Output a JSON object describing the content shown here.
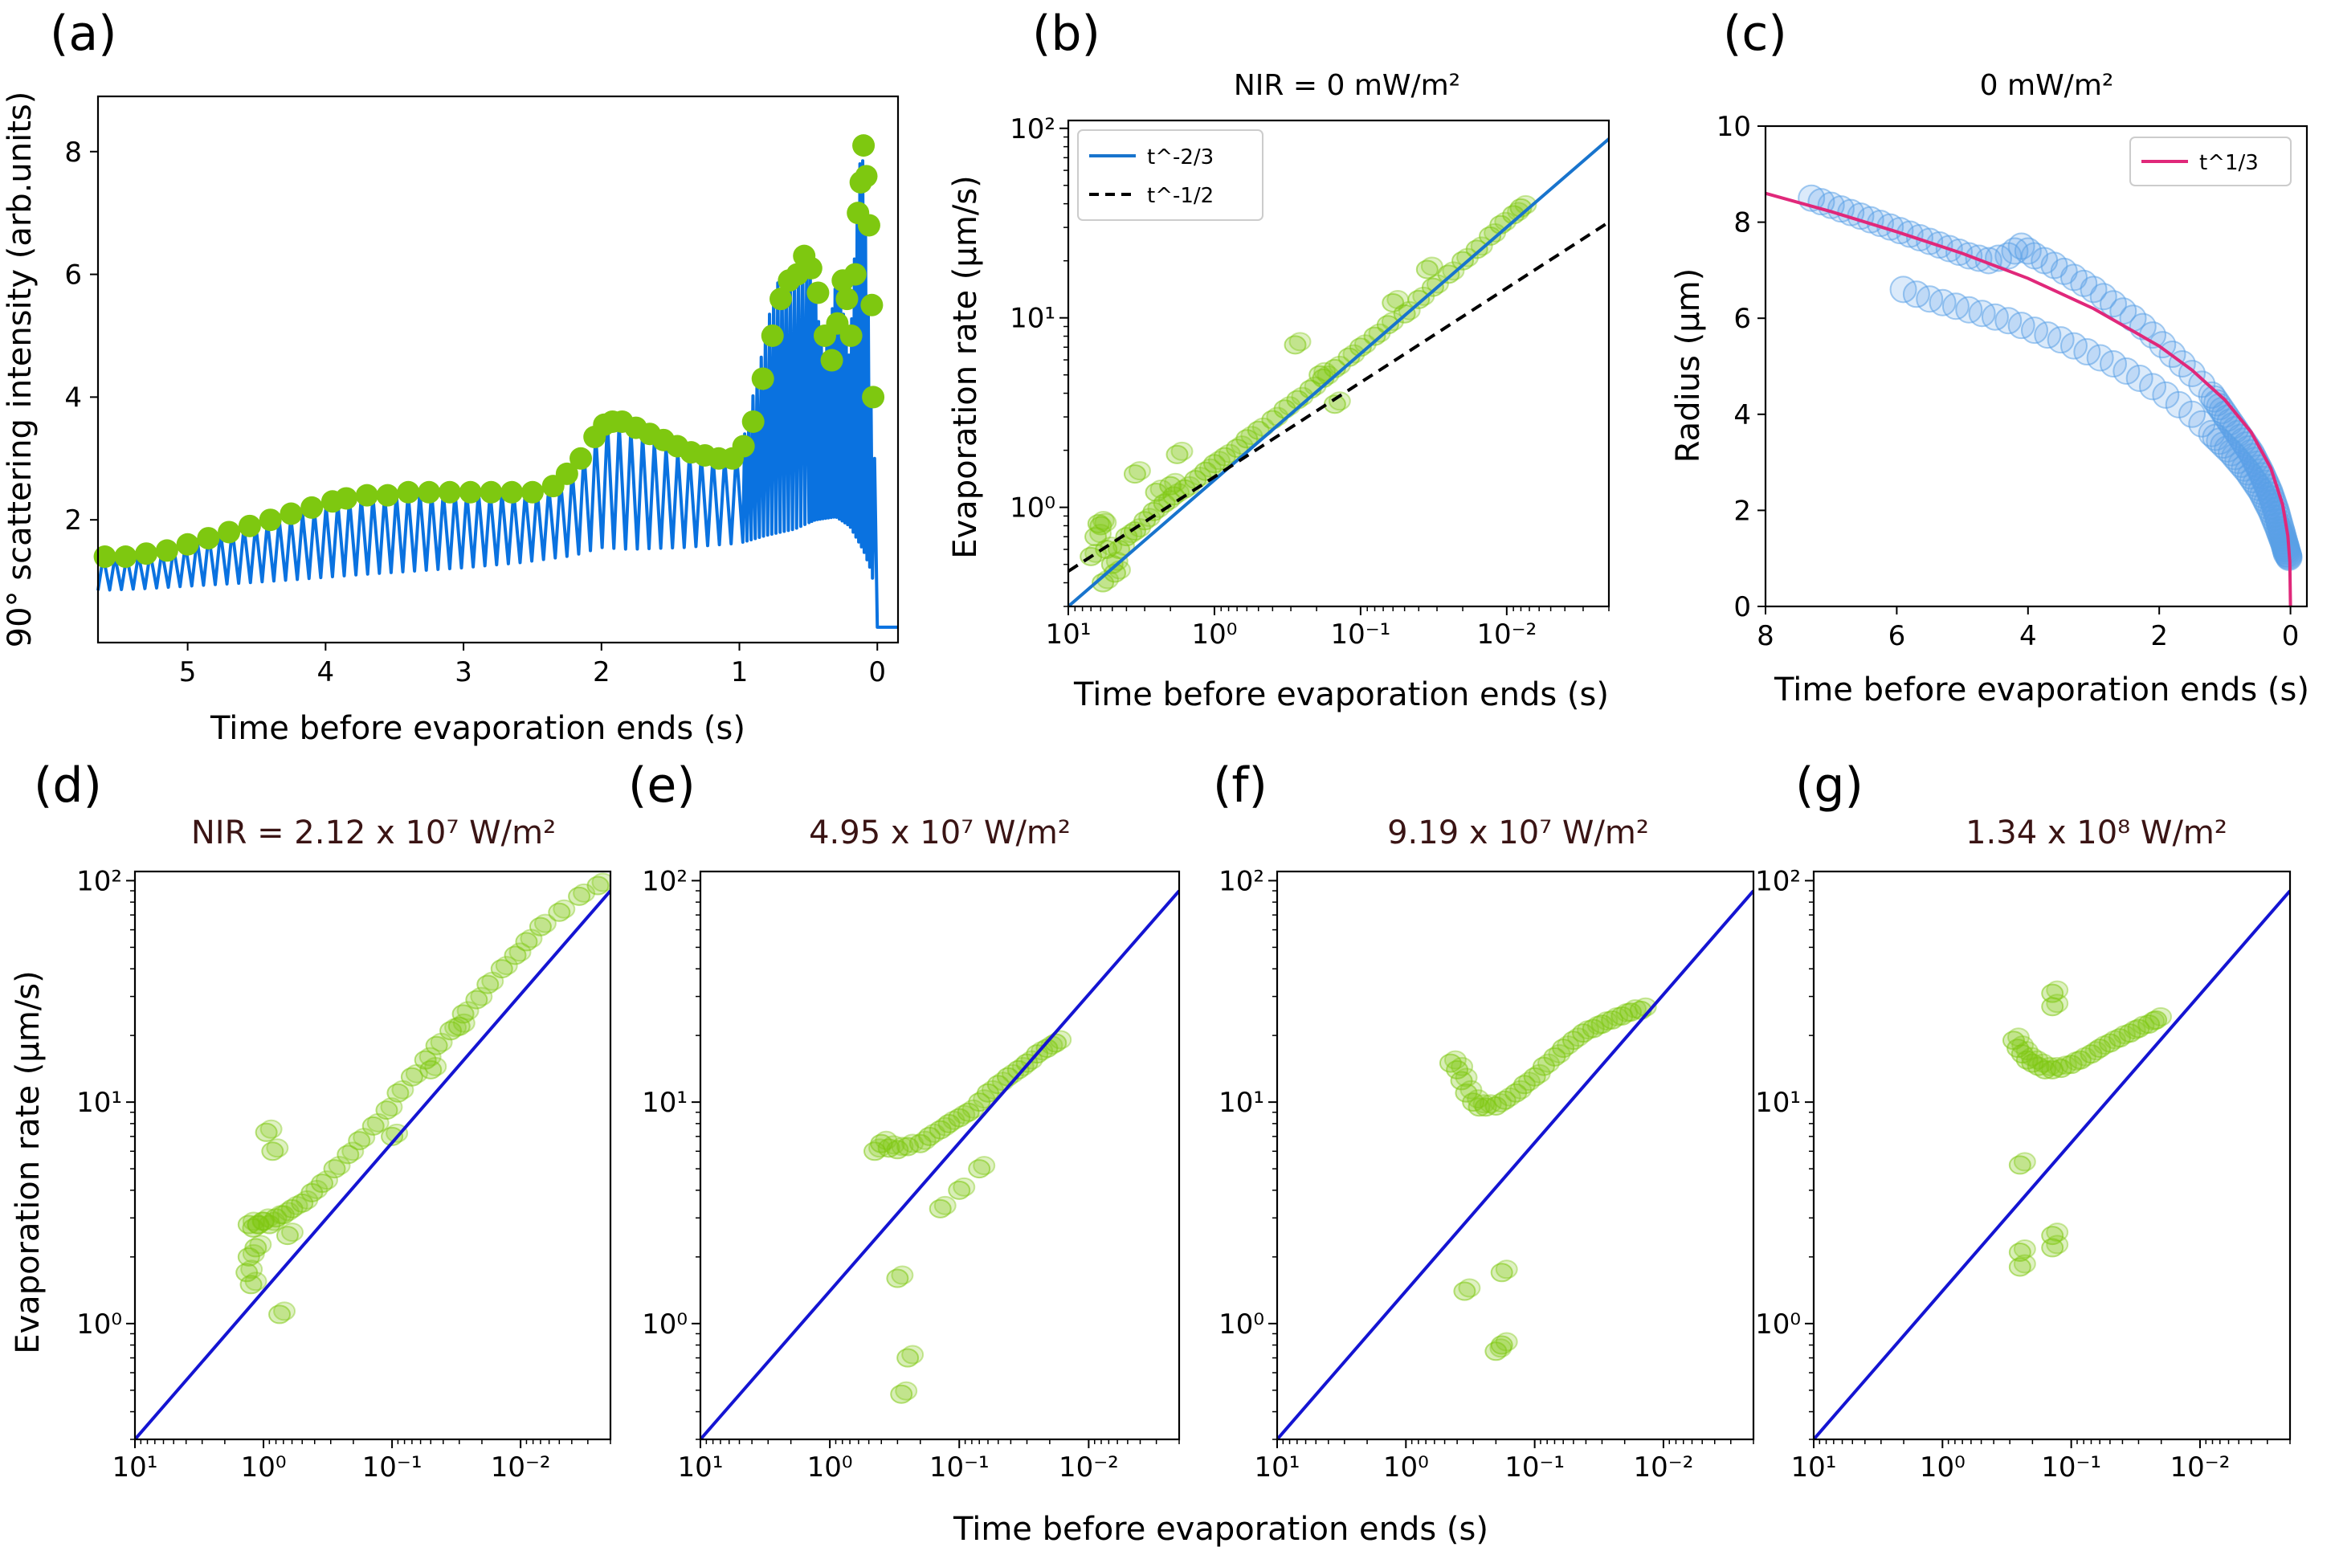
{
  "figure": {
    "panels": [
      {
        "id": "a",
        "letter": "(a)",
        "title": "",
        "xlabel": "Time before evaporation ends (s)",
        "ylabel": "90° scattering intensity (arb.units)"
      },
      {
        "id": "b",
        "letter": "(b)",
        "title": "NIR = 0 mW/m²",
        "xlabel": "Time before evaporation ends (s)",
        "ylabel": "Evaporation rate (μm/s)"
      },
      {
        "id": "c",
        "letter": "(c)",
        "title": "0 mW/m²",
        "xlabel": "Time before evaporation ends (s)",
        "ylabel": "Radius (μm)"
      },
      {
        "id": "d",
        "letter": "(d)",
        "title": "NIR = 2.12 x 10⁷ W/m²",
        "xlabel": "",
        "ylabel": "Evaporation rate (μm/s)"
      },
      {
        "id": "e",
        "letter": "(e)",
        "title": "4.95 x 10⁷ W/m²",
        "xlabel": "",
        "ylabel": ""
      },
      {
        "id": "f",
        "letter": "(f)",
        "title": "9.19 x 10⁷ W/m²",
        "xlabel": "",
        "ylabel": ""
      },
      {
        "id": "g",
        "letter": "(g)",
        "title": "1.34 x 10⁸ W/m²",
        "xlabel": "",
        "ylabel": ""
      }
    ],
    "shared_xlabel_bottom": "Time before evaporation ends (s)",
    "colors": {
      "blue_line": "#0a72e0",
      "green_marker": "#7ec810",
      "fit_blue": "#1874cd",
      "dash": "#000000",
      "pink": "#e0287a",
      "navy_line": "#1414d2",
      "marker_blue": "#5aa0e6"
    }
  },
  "chart_data": [
    {
      "panel": "a",
      "type": "line",
      "xlabel": "Time before evaporation ends (s)",
      "ylabel": "90° scattering intensity (arb.units)",
      "xlim": [
        5.65,
        -0.15
      ],
      "ylim": [
        0.0,
        8.9
      ],
      "xticks": [
        5,
        4,
        3,
        2,
        1,
        0
      ],
      "yticks": [
        2,
        4,
        6,
        8
      ],
      "xtick_labels": [
        "5",
        "4",
        "3",
        "2",
        "1",
        "0"
      ],
      "ytick_labels": [
        "2",
        "4",
        "6",
        "8"
      ],
      "envelope_max": {
        "t": [
          5.6,
          5.5,
          5.35,
          5.2,
          5.05,
          4.9,
          4.8,
          4.6,
          4.4,
          4.2,
          4.0,
          3.85,
          3.6,
          3.4,
          3.2,
          3.0,
          2.8,
          2.6,
          2.4,
          2.25,
          2.1,
          2.0,
          1.95,
          1.85,
          1.75,
          1.6,
          1.45,
          1.3,
          1.15,
          1.0,
          0.95,
          0.9,
          0.85,
          0.8,
          0.75,
          0.7,
          0.65,
          0.6,
          0.55,
          0.5,
          0.45,
          0.4,
          0.35,
          0.3,
          0.27,
          0.24,
          0.21,
          0.19,
          0.17,
          0.15,
          0.13,
          0.11,
          0.09,
          0.07,
          0.06,
          0.05,
          0.04
        ],
        "y": [
          1.4,
          1.4,
          1.45,
          1.5,
          1.6,
          1.75,
          1.8,
          1.9,
          2.0,
          2.1,
          2.25,
          2.35,
          2.4,
          2.45,
          2.45,
          2.45,
          2.45,
          2.45,
          2.55,
          2.8,
          3.35,
          3.6,
          3.6,
          3.5,
          3.4,
          3.2,
          3.1,
          3.05,
          3.0,
          3.2,
          3.6,
          4.2,
          4.7,
          5.3,
          5.8,
          6.0,
          5.95,
          6.1,
          6.4,
          6.0,
          5.5,
          4.6,
          5.2,
          6.0,
          5.6,
          5.1,
          4.6,
          5.5,
          6.5,
          7.2,
          8.0,
          7.8,
          6.5,
          5.2,
          4.5,
          3.5,
          2.5
        ]
      },
      "envelope_min": {
        "t": [
          5.65,
          5.3,
          5.0,
          4.6,
          4.2,
          3.8,
          3.4,
          3.0,
          2.6,
          2.2,
          2.0,
          1.8,
          1.4,
          1.0,
          0.8,
          0.6,
          0.45,
          0.3,
          0.2,
          0.1,
          0.05,
          0.02,
          0.0,
          -0.15
        ],
        "y": [
          0.85,
          0.88,
          0.92,
          0.97,
          1.03,
          1.1,
          1.16,
          1.22,
          1.3,
          1.42,
          1.55,
          1.52,
          1.55,
          1.62,
          1.75,
          1.85,
          2.0,
          2.05,
          1.9,
          1.5,
          1.2,
          0.9,
          0.25,
          0.25
        ]
      },
      "markers": {
        "t": [
          5.6,
          5.45,
          5.3,
          5.15,
          5.0,
          4.85,
          4.7,
          4.55,
          4.4,
          4.25,
          4.1,
          3.95,
          3.85,
          3.7,
          3.55,
          3.4,
          3.25,
          3.1,
          2.95,
          2.8,
          2.65,
          2.5,
          2.35,
          2.25,
          2.15,
          2.05,
          1.98,
          1.92,
          1.85,
          1.75,
          1.65,
          1.55,
          1.45,
          1.35,
          1.25,
          1.15,
          1.05,
          0.97,
          0.9,
          0.83,
          0.76,
          0.7,
          0.64,
          0.58,
          0.53,
          0.48,
          0.43,
          0.38,
          0.33,
          0.29,
          0.25,
          0.22,
          0.19,
          0.16,
          0.14,
          0.12,
          0.1,
          0.08,
          0.06,
          0.04,
          0.03
        ],
        "y": [
          1.4,
          1.4,
          1.45,
          1.5,
          1.6,
          1.7,
          1.8,
          1.9,
          2.0,
          2.1,
          2.2,
          2.3,
          2.35,
          2.4,
          2.4,
          2.45,
          2.45,
          2.45,
          2.45,
          2.45,
          2.45,
          2.45,
          2.55,
          2.75,
          3.0,
          3.35,
          3.55,
          3.6,
          3.6,
          3.5,
          3.4,
          3.3,
          3.2,
          3.1,
          3.05,
          3.0,
          3.0,
          3.2,
          3.6,
          4.3,
          5.0,
          5.6,
          5.9,
          6.0,
          6.3,
          6.1,
          5.7,
          5.0,
          4.6,
          5.2,
          5.9,
          5.6,
          5.0,
          6.0,
          7.0,
          7.5,
          8.1,
          7.6,
          6.8,
          5.5,
          4.0
        ]
      }
    },
    {
      "panel": "b",
      "type": "scatter",
      "title": "NIR = 0 mW/m²",
      "xscale": "log-reversed",
      "yscale": "log",
      "xlim": [
        10,
        0.002
      ],
      "ylim": [
        0.3,
        110
      ],
      "xtick_labels": [
        "10¹",
        "10⁰",
        "10⁻¹",
        "10⁻²"
      ],
      "ytick_labels": [
        "10⁰",
        "10¹",
        "10²"
      ],
      "legend": [
        "t^-2/3",
        "t^-1/2"
      ],
      "legend_position": "top-left",
      "fit_lines": [
        {
          "name": "t^-2/3",
          "style": "solid",
          "x": [
            10,
            0.002
          ],
          "y": [
            0.3,
            88
          ]
        },
        {
          "name": "t^-1/2",
          "style": "dashed",
          "x": [
            10,
            0.002
          ],
          "y": [
            0.46,
            32
          ]
        }
      ],
      "points": {
        "x": [
          7.0,
          6.5,
          6.0,
          5.5,
          5.0,
          4.5,
          4.0,
          3.5,
          3.0,
          2.6,
          2.2,
          1.9,
          1.6,
          1.35,
          1.15,
          1.0,
          0.85,
          0.7,
          0.6,
          0.5,
          0.4,
          0.33,
          0.27,
          0.22,
          0.18,
          0.15,
          0.12,
          0.1,
          0.08,
          0.065,
          0.05,
          0.04,
          0.032,
          0.025,
          0.02,
          0.016,
          0.013,
          0.011,
          0.009,
          0.008,
          3.5,
          2.5,
          0.28,
          0.19,
          0.15,
          0.035,
          0.06,
          6.2,
          5.8,
          4.8,
          1.8,
          2.0
        ],
        "y": [
          0.55,
          0.7,
          0.8,
          0.6,
          0.5,
          0.6,
          0.7,
          0.75,
          0.85,
          0.95,
          1.05,
          1.15,
          1.25,
          1.4,
          1.55,
          1.7,
          1.85,
          2.05,
          2.3,
          2.55,
          2.9,
          3.3,
          3.7,
          4.2,
          4.8,
          5.4,
          6.2,
          7.0,
          8.0,
          9.2,
          10.5,
          12.5,
          14.5,
          17,
          20,
          23,
          27,
          31,
          35,
          38,
          1.5,
          1.2,
          7.2,
          5.0,
          3.5,
          18,
          12,
          0.82,
          0.4,
          0.45,
          1.9,
          1.3
        ]
      }
    },
    {
      "panel": "c",
      "type": "scatter",
      "title": "0 mW/m²",
      "xlim": [
        8,
        -0.25
      ],
      "ylim": [
        0,
        10
      ],
      "xtick_labels": [
        "8",
        "6",
        "4",
        "2",
        "0"
      ],
      "ytick_labels": [
        "0",
        "2",
        "4",
        "6",
        "8",
        "10"
      ],
      "legend": [
        "t^1/3"
      ],
      "legend_position": "top-right",
      "fit_line": {
        "name": "t^1/3",
        "t": [
          8,
          7,
          6,
          5,
          4,
          3,
          2,
          1.5,
          1,
          0.6,
          0.3,
          0.12,
          0.04,
          0.01,
          0.0
        ],
        "y": [
          8.6,
          8.22,
          7.8,
          7.35,
          6.83,
          6.2,
          5.42,
          4.92,
          4.3,
          3.63,
          2.88,
          2.12,
          1.47,
          0.93,
          0.0
        ]
      },
      "series": [
        {
          "name": "upper",
          "t": [
            7.3,
            7.0,
            6.7,
            6.4,
            6.1,
            5.8,
            5.5,
            5.2,
            4.9,
            4.6,
            4.3,
            4.1,
            3.9,
            3.6,
            3.3,
            3.0,
            2.7,
            2.4,
            2.1,
            1.8,
            1.5,
            1.2,
            1.0,
            0.8,
            0.6,
            0.45,
            0.32,
            0.22,
            0.14,
            0.08,
            0.04,
            0.02
          ],
          "y": [
            8.5,
            8.35,
            8.2,
            8.05,
            7.9,
            7.75,
            7.6,
            7.45,
            7.3,
            7.2,
            7.3,
            7.5,
            7.3,
            7.1,
            6.85,
            6.6,
            6.3,
            6.0,
            5.65,
            5.25,
            4.85,
            4.4,
            4.0,
            3.6,
            3.2,
            2.8,
            2.4,
            2.0,
            1.6,
            1.3,
            1.1,
            1.0
          ]
        },
        {
          "name": "lower",
          "t": [
            5.9,
            5.5,
            5.1,
            4.7,
            4.3,
            3.9,
            3.5,
            3.1,
            2.7,
            2.3,
            1.9,
            1.5,
            1.2,
            0.9,
            0.65,
            0.45,
            0.3,
            0.18,
            0.1,
            0.05
          ],
          "y": [
            6.6,
            6.4,
            6.25,
            6.1,
            5.95,
            5.75,
            5.55,
            5.3,
            5.05,
            4.75,
            4.4,
            4.0,
            3.6,
            3.2,
            2.8,
            2.4,
            2.0,
            1.6,
            1.3,
            1.05
          ]
        }
      ]
    },
    {
      "panel": "d",
      "type": "scatter",
      "title": "NIR = 2.12 x 10⁷ W/m²",
      "xscale": "log-reversed",
      "yscale": "log",
      "xlim": [
        10,
        0.002
      ],
      "ylim": [
        0.3,
        110
      ],
      "reference_line": {
        "x": [
          10,
          0.002
        ],
        "y": [
          0.3,
          90
        ]
      },
      "points": {
        "x": [
          1.3,
          1.2,
          1.1,
          1.0,
          0.9,
          0.8,
          0.7,
          0.6,
          0.5,
          0.42,
          0.35,
          0.28,
          0.22,
          0.18,
          0.14,
          0.11,
          0.09,
          0.07,
          0.055,
          0.045,
          0.035,
          0.028,
          0.022,
          0.018,
          0.014,
          0.011,
          0.009,
          0.007,
          0.005,
          0.0035,
          0.0025,
          1.35,
          1.25,
          1.15,
          0.95,
          0.85,
          1.3,
          0.75,
          0.65,
          0.1,
          0.05,
          0.03
        ],
        "y": [
          2.8,
          2.7,
          2.8,
          2.9,
          2.8,
          3.0,
          3.1,
          3.3,
          3.5,
          3.9,
          4.3,
          5.0,
          5.8,
          6.7,
          7.8,
          9.2,
          11,
          13,
          15.5,
          18,
          21,
          25,
          29,
          34,
          40,
          46,
          53,
          62,
          72,
          85,
          95,
          1.7,
          1.5,
          2.2,
          7.3,
          6.0,
          2.0,
          1.1,
          2.5,
          7.0,
          14,
          22
        ]
      }
    },
    {
      "panel": "e",
      "type": "scatter",
      "title": "4.95 x 10⁷ W/m²",
      "xscale": "log-reversed",
      "yscale": "log",
      "xlim": [
        10,
        0.002
      ],
      "ylim": [
        0.3,
        110
      ],
      "reference_line": {
        "x": [
          10,
          0.002
        ],
        "y": [
          0.3,
          90
        ]
      },
      "points": {
        "x": [
          0.45,
          0.4,
          0.35,
          0.3,
          0.25,
          0.2,
          0.17,
          0.14,
          0.12,
          0.1,
          0.085,
          0.07,
          0.06,
          0.05,
          0.042,
          0.035,
          0.03,
          0.025,
          0.021,
          0.018,
          0.3,
          0.25,
          0.28,
          0.1,
          0.14,
          0.07
        ],
        "y": [
          6.0,
          6.5,
          6.2,
          6.1,
          6.3,
          6.5,
          7.0,
          7.5,
          8.0,
          8.5,
          9.0,
          10,
          11,
          12,
          13,
          14,
          15,
          16.5,
          17.5,
          18.5,
          1.6,
          0.7,
          0.48,
          4.0,
          3.3,
          5.0
        ]
      }
    },
    {
      "panel": "f",
      "type": "scatter",
      "title": "9.19 x 10⁷ W/m²",
      "xscale": "log-reversed",
      "yscale": "log",
      "xlim": [
        10,
        0.002
      ],
      "ylim": [
        0.3,
        110
      ],
      "reference_line": {
        "x": [
          10,
          0.002
        ],
        "y": [
          0.3,
          90
        ]
      },
      "points": {
        "x": [
          0.45,
          0.4,
          0.37,
          0.34,
          0.3,
          0.27,
          0.24,
          0.2,
          0.17,
          0.14,
          0.12,
          0.1,
          0.085,
          0.07,
          0.06,
          0.05,
          0.042,
          0.035,
          0.03,
          0.025,
          0.021,
          0.018,
          0.015,
          0.35,
          0.18,
          0.18,
          0.2
        ],
        "y": [
          15,
          14,
          12.5,
          11,
          10,
          9.5,
          9.5,
          9.6,
          10.2,
          11,
          12,
          13,
          14.5,
          16,
          17.5,
          19,
          20.5,
          21.5,
          22.5,
          23.5,
          24.5,
          25.5,
          26,
          1.4,
          1.7,
          0.8,
          0.75
        ]
      }
    },
    {
      "panel": "g",
      "type": "scatter",
      "title": "1.34 x 10⁸ W/m²",
      "xscale": "log-reversed",
      "yscale": "log",
      "xlim": [
        10,
        0.002
      ],
      "ylim": [
        0.3,
        110
      ],
      "reference_line": {
        "x": [
          10,
          0.002
        ],
        "y": [
          0.3,
          90
        ]
      },
      "points": {
        "x": [
          0.28,
          0.26,
          0.24,
          0.22,
          0.2,
          0.18,
          0.16,
          0.14,
          0.12,
          0.1,
          0.085,
          0.07,
          0.06,
          0.05,
          0.042,
          0.035,
          0.03,
          0.025,
          0.022,
          0.14,
          0.14,
          0.14,
          0.25,
          0.25,
          0.25,
          0.14
        ],
        "y": [
          19,
          17.5,
          16.5,
          15.5,
          15,
          14.5,
          14,
          14,
          14.2,
          14.8,
          15.5,
          16.5,
          17.5,
          18.5,
          19.5,
          20.5,
          21.5,
          22.5,
          23.5,
          31,
          27,
          2.5,
          5.2,
          2.1,
          1.8,
          2.2
        ]
      }
    }
  ]
}
